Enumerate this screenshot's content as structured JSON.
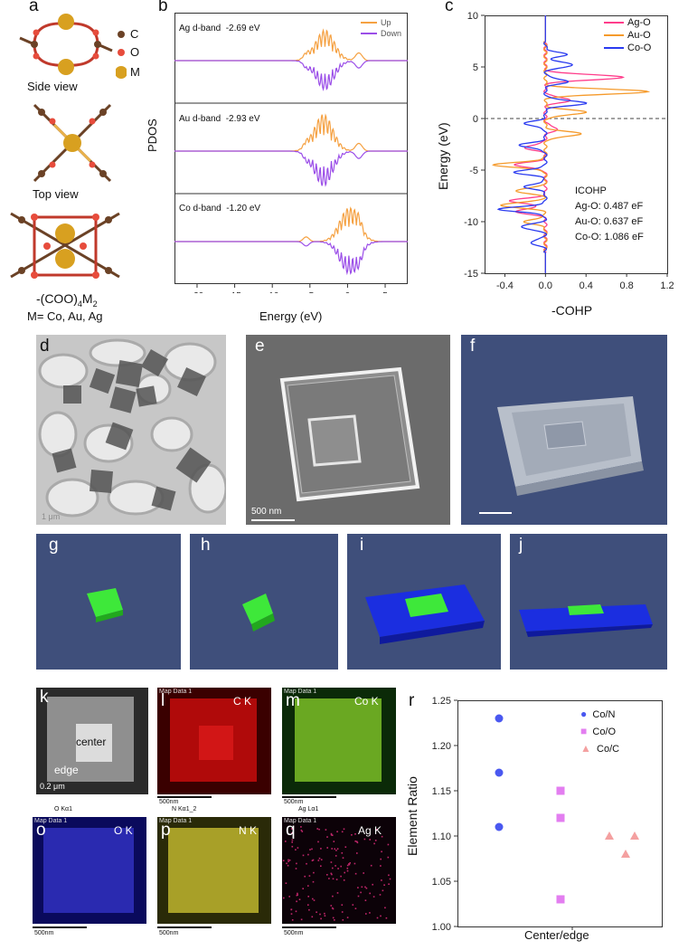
{
  "panels": {
    "a": "a",
    "b": "b",
    "c": "c",
    "d": "d",
    "e": "e",
    "f": "f",
    "g": "g",
    "h": "h",
    "i": "i",
    "j": "j",
    "k": "k",
    "l": "l",
    "m": "m",
    "o": "o",
    "p": "p",
    "q": "q",
    "r": "r"
  },
  "panel_a": {
    "legend_c": "C",
    "legend_o": "O",
    "legend_m": "M",
    "side_view": "Side view",
    "top_view": "Top view",
    "formula_main": "-(COO)",
    "formula_sub1": "4",
    "formula_mid": "M",
    "formula_sub2": "2",
    "formula_line2": "M= Co, Au, Ag"
  },
  "panel_b": {
    "ylabel": "PDOS",
    "xlabel": "Energy (eV)",
    "x_ticks": [
      "-20",
      "-15",
      "-10",
      "-5",
      "0",
      "5"
    ],
    "legend_up": "Up",
    "legend_down": "Down",
    "rows": [
      {
        "label": "Ag d-band",
        "value": "-2.69 eV"
      },
      {
        "label": "Au d-band",
        "value": "-2.93 eV"
      },
      {
        "label": "Co d-band",
        "value": "-1.20 eV"
      }
    ],
    "colors": {
      "up": "#f5a142",
      "down": "#9b4ee8"
    }
  },
  "chart_data": {
    "type": "line",
    "xlabel": "-COHP",
    "ylabel": "Energy (eV)",
    "xlim": [
      -0.6,
      1.2
    ],
    "ylim": [
      -15,
      10
    ],
    "x_ticks": [
      "-0.4",
      "0.0",
      "0.4",
      "0.8",
      "1.2"
    ],
    "y_ticks": [
      "10",
      "5",
      "0",
      "-5",
      "-10",
      "-15"
    ],
    "legend_placement": "top-right",
    "series": [
      {
        "name": "Ag-O",
        "color": "#ff3d8b"
      },
      {
        "name": "Au-O",
        "color": "#f59a2b"
      },
      {
        "name": "Co-O",
        "color": "#2a3bf0"
      }
    ],
    "annotation": {
      "title": "ICOHP",
      "lines": [
        "Ag-O: 0.487 eF",
        "Au-O: 0.637 eF",
        "Co-O: 1.086 eF"
      ]
    }
  },
  "panel_r": {
    "type": "scatter",
    "ylabel": "Element Ratio",
    "xlabel": "Center/edge",
    "y_ticks": [
      "1.25",
      "1.20",
      "1.15",
      "1.10",
      "1.05",
      "1.00"
    ],
    "ylim": [
      1.0,
      1.25
    ],
    "series": [
      {
        "name": "Co/N",
        "color": "#4a58f0",
        "marker": "circle",
        "values": [
          1.23,
          1.17,
          1.11
        ]
      },
      {
        "name": "Co/O",
        "color": "#e37ef0",
        "marker": "square",
        "values": [
          1.15,
          1.12,
          1.03
        ]
      },
      {
        "name": "Co/C",
        "color": "#f4a0a0",
        "marker": "triangle",
        "values": [
          1.1,
          1.08,
          1.1
        ]
      }
    ]
  },
  "panel_d": {
    "scalebar": "1 μm"
  },
  "panel_e": {
    "scalebar": "500 nm"
  },
  "panel_k": {
    "center": "center",
    "edge": "edge",
    "scalebar": "0.2 μm"
  },
  "eds_maps": {
    "l": {
      "header": "Map Data 1",
      "element": "C K",
      "scalebar": "500nm",
      "title_below": "N Kα1_2"
    },
    "m": {
      "header": "Map Data 1",
      "element": "Co K",
      "scalebar": "500nm",
      "title_below": "Ag Lα1"
    },
    "o": {
      "header": "Map Data 1",
      "element": "O K",
      "scalebar": "500nm",
      "title_above": "O Kα1"
    },
    "p": {
      "header": "Map Data 1",
      "element": "N K",
      "scalebar": "500nm"
    },
    "q": {
      "header": "Map Data 1",
      "element": "Ag K",
      "scalebar": "500nm"
    }
  }
}
